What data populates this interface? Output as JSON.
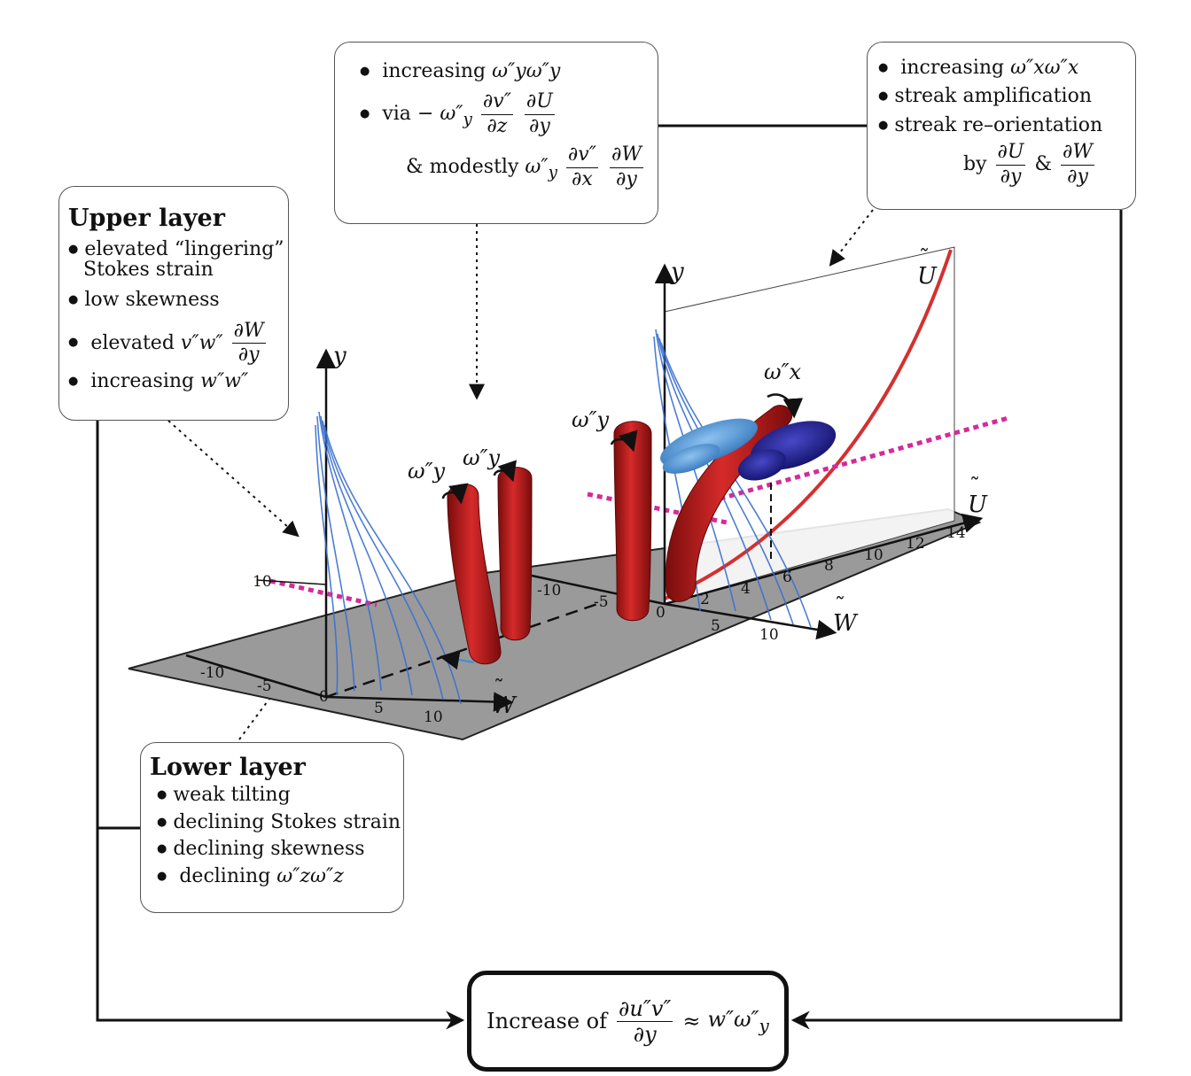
{
  "upper_layer": {
    "title": "Upper layer",
    "item1_line1": "elevated “lingering”",
    "item1_line2": "Stokes strain",
    "item2": "low skewness",
    "item3_prefix": "elevated",
    "item3_expr": "v″w″",
    "item4_prefix": "increasing",
    "item4_expr": "w″w″"
  },
  "top_middle": {
    "item1_prefix": "increasing",
    "item1_expr": "ω″yω″y",
    "item2_prefix": "via",
    "item3_prefix": "& modestly"
  },
  "top_right": {
    "item1_prefix": "increasing",
    "item1_expr": "ω″xω″x",
    "item2": "streak amplification",
    "item3": "streak re–orientation",
    "item4_prefix": "by",
    "item4_amp": "&"
  },
  "lower_layer": {
    "title": "Lower layer",
    "item1": "weak tilting",
    "item2": "declining Stokes strain",
    "item3": "declining skewness",
    "item4_prefix": "declining",
    "item4_expr": "ω″zω″z"
  },
  "result": {
    "prefix": "Increase of",
    "approx": "≈"
  },
  "figure": {
    "left_axes": {
      "y_label": "y",
      "w_label": "W",
      "y_tick": "10",
      "w_ticks": [
        "-10",
        "-5",
        "0",
        "5",
        "10"
      ]
    },
    "right_axes": {
      "y_label": "y",
      "w_label": "W",
      "u_label": "U",
      "u_label_top": "U",
      "w_ticks": [
        "-10",
        "-5",
        "0",
        "5",
        "10"
      ],
      "u_ticks": [
        "2",
        "4",
        "6",
        "8",
        "10",
        "12",
        "14"
      ]
    },
    "vortex_labels": [
      "ω″y",
      "ω″y",
      "ω″y",
      "ω″x"
    ],
    "colors": {
      "vortex_red": "#c41a1a",
      "streak_dark_blue": "#1a1a8c",
      "streak_light_blue": "#4a8fd0",
      "profile_blue": "#3a6fd0",
      "magenta": "#d52a9a",
      "plane_gray": "#9a9a9a",
      "u_curve_red": "#d43030"
    }
  }
}
